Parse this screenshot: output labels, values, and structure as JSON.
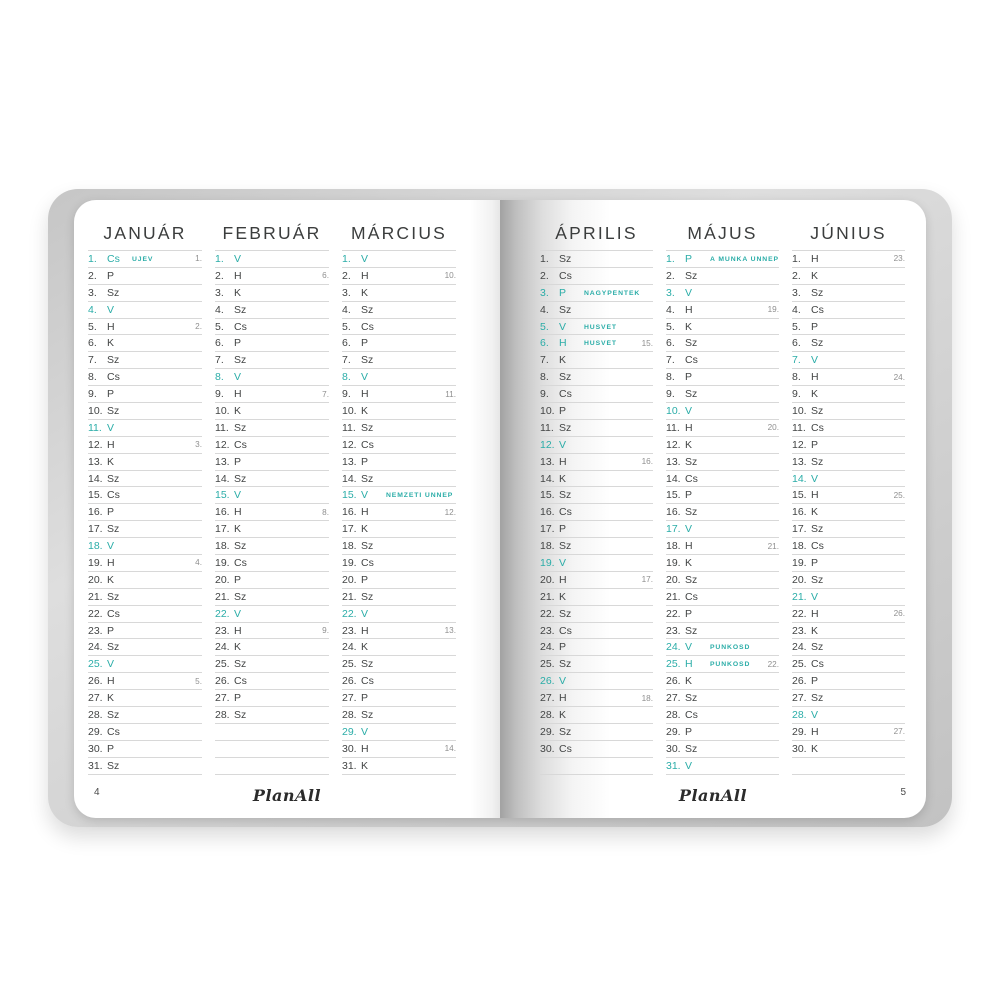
{
  "accent_color": "#2bada8",
  "line_color": "#d8d8d8",
  "left_page": {
    "page_number": "4",
    "logo": "PlanAll"
  },
  "right_page": {
    "page_number": "5",
    "logo": "PlanAll"
  },
  "months": [
    {
      "name": "JANUÁR",
      "rows": [
        {
          "d": "1.",
          "w": "Cs",
          "h": "ÚJÉV",
          "teal": true,
          "wk": "1."
        },
        {
          "d": "2.",
          "w": "P"
        },
        {
          "d": "3.",
          "w": "Sz"
        },
        {
          "d": "4.",
          "w": "V",
          "teal": true
        },
        {
          "d": "5.",
          "w": "H",
          "wk": "2."
        },
        {
          "d": "6.",
          "w": "K"
        },
        {
          "d": "7.",
          "w": "Sz"
        },
        {
          "d": "8.",
          "w": "Cs"
        },
        {
          "d": "9.",
          "w": "P"
        },
        {
          "d": "10.",
          "w": "Sz"
        },
        {
          "d": "11.",
          "w": "V",
          "teal": true
        },
        {
          "d": "12.",
          "w": "H",
          "wk": "3."
        },
        {
          "d": "13.",
          "w": "K"
        },
        {
          "d": "14.",
          "w": "Sz"
        },
        {
          "d": "15.",
          "w": "Cs"
        },
        {
          "d": "16.",
          "w": "P"
        },
        {
          "d": "17.",
          "w": "Sz"
        },
        {
          "d": "18.",
          "w": "V",
          "teal": true
        },
        {
          "d": "19.",
          "w": "H",
          "wk": "4."
        },
        {
          "d": "20.",
          "w": "K"
        },
        {
          "d": "21.",
          "w": "Sz"
        },
        {
          "d": "22.",
          "w": "Cs"
        },
        {
          "d": "23.",
          "w": "P"
        },
        {
          "d": "24.",
          "w": "Sz"
        },
        {
          "d": "25.",
          "w": "V",
          "teal": true
        },
        {
          "d": "26.",
          "w": "H",
          "wk": "5."
        },
        {
          "d": "27.",
          "w": "K"
        },
        {
          "d": "28.",
          "w": "Sz"
        },
        {
          "d": "29.",
          "w": "Cs"
        },
        {
          "d": "30.",
          "w": "P"
        },
        {
          "d": "31.",
          "w": "Sz"
        }
      ]
    },
    {
      "name": "FEBRUÁR",
      "rows": [
        {
          "d": "1.",
          "w": "V",
          "teal": true
        },
        {
          "d": "2.",
          "w": "H",
          "wk": "6."
        },
        {
          "d": "3.",
          "w": "K"
        },
        {
          "d": "4.",
          "w": "Sz"
        },
        {
          "d": "5.",
          "w": "Cs"
        },
        {
          "d": "6.",
          "w": "P"
        },
        {
          "d": "7.",
          "w": "Sz"
        },
        {
          "d": "8.",
          "w": "V",
          "teal": true
        },
        {
          "d": "9.",
          "w": "H",
          "wk": "7."
        },
        {
          "d": "10.",
          "w": "K"
        },
        {
          "d": "11.",
          "w": "Sz"
        },
        {
          "d": "12.",
          "w": "Cs"
        },
        {
          "d": "13.",
          "w": "P"
        },
        {
          "d": "14.",
          "w": "Sz"
        },
        {
          "d": "15.",
          "w": "V",
          "teal": true
        },
        {
          "d": "16.",
          "w": "H",
          "wk": "8."
        },
        {
          "d": "17.",
          "w": "K"
        },
        {
          "d": "18.",
          "w": "Sz"
        },
        {
          "d": "19.",
          "w": "Cs"
        },
        {
          "d": "20.",
          "w": "P"
        },
        {
          "d": "21.",
          "w": "Sz"
        },
        {
          "d": "22.",
          "w": "V",
          "teal": true
        },
        {
          "d": "23.",
          "w": "H",
          "wk": "9."
        },
        {
          "d": "24.",
          "w": "K"
        },
        {
          "d": "25.",
          "w": "Sz"
        },
        {
          "d": "26.",
          "w": "Cs"
        },
        {
          "d": "27.",
          "w": "P"
        },
        {
          "d": "28.",
          "w": "Sz"
        },
        null,
        null,
        null
      ]
    },
    {
      "name": "MÁRCIUS",
      "rows": [
        {
          "d": "1.",
          "w": "V",
          "teal": true
        },
        {
          "d": "2.",
          "w": "H",
          "wk": "10."
        },
        {
          "d": "3.",
          "w": "K"
        },
        {
          "d": "4.",
          "w": "Sz"
        },
        {
          "d": "5.",
          "w": "Cs"
        },
        {
          "d": "6.",
          "w": "P"
        },
        {
          "d": "7.",
          "w": "Sz"
        },
        {
          "d": "8.",
          "w": "V",
          "teal": true
        },
        {
          "d": "9.",
          "w": "H",
          "wk": "11."
        },
        {
          "d": "10.",
          "w": "K"
        },
        {
          "d": "11.",
          "w": "Sz"
        },
        {
          "d": "12.",
          "w": "Cs"
        },
        {
          "d": "13.",
          "w": "P"
        },
        {
          "d": "14.",
          "w": "Sz"
        },
        {
          "d": "15.",
          "w": "V",
          "h": "NEMZETI ÜNNEP",
          "teal": true
        },
        {
          "d": "16.",
          "w": "H",
          "wk": "12."
        },
        {
          "d": "17.",
          "w": "K"
        },
        {
          "d": "18.",
          "w": "Sz"
        },
        {
          "d": "19.",
          "w": "Cs"
        },
        {
          "d": "20.",
          "w": "P"
        },
        {
          "d": "21.",
          "w": "Sz"
        },
        {
          "d": "22.",
          "w": "V",
          "teal": true
        },
        {
          "d": "23.",
          "w": "H",
          "wk": "13."
        },
        {
          "d": "24.",
          "w": "K"
        },
        {
          "d": "25.",
          "w": "Sz"
        },
        {
          "d": "26.",
          "w": "Cs"
        },
        {
          "d": "27.",
          "w": "P"
        },
        {
          "d": "28.",
          "w": "Sz"
        },
        {
          "d": "29.",
          "w": "V",
          "teal": true
        },
        {
          "d": "30.",
          "w": "H",
          "wk": "14."
        },
        {
          "d": "31.",
          "w": "K"
        }
      ]
    },
    {
      "name": "ÁPRILIS",
      "rows": [
        {
          "d": "1.",
          "w": "Sz"
        },
        {
          "d": "2.",
          "w": "Cs"
        },
        {
          "d": "3.",
          "w": "P",
          "h": "NAGYPÉNTEK",
          "teal": true
        },
        {
          "d": "4.",
          "w": "Sz"
        },
        {
          "d": "5.",
          "w": "V",
          "h": "HÚSVÉT",
          "teal": true
        },
        {
          "d": "6.",
          "w": "H",
          "h": "HÚSVÉT",
          "teal": true,
          "wk": "15."
        },
        {
          "d": "7.",
          "w": "K"
        },
        {
          "d": "8.",
          "w": "Sz"
        },
        {
          "d": "9.",
          "w": "Cs"
        },
        {
          "d": "10.",
          "w": "P"
        },
        {
          "d": "11.",
          "w": "Sz"
        },
        {
          "d": "12.",
          "w": "V",
          "teal": true
        },
        {
          "d": "13.",
          "w": "H",
          "wk": "16."
        },
        {
          "d": "14.",
          "w": "K"
        },
        {
          "d": "15.",
          "w": "Sz"
        },
        {
          "d": "16.",
          "w": "Cs"
        },
        {
          "d": "17.",
          "w": "P"
        },
        {
          "d": "18.",
          "w": "Sz"
        },
        {
          "d": "19.",
          "w": "V",
          "teal": true
        },
        {
          "d": "20.",
          "w": "H",
          "wk": "17."
        },
        {
          "d": "21.",
          "w": "K"
        },
        {
          "d": "22.",
          "w": "Sz"
        },
        {
          "d": "23.",
          "w": "Cs"
        },
        {
          "d": "24.",
          "w": "P"
        },
        {
          "d": "25.",
          "w": "Sz"
        },
        {
          "d": "26.",
          "w": "V",
          "teal": true
        },
        {
          "d": "27.",
          "w": "H",
          "wk": "18."
        },
        {
          "d": "28.",
          "w": "K"
        },
        {
          "d": "29.",
          "w": "Sz"
        },
        {
          "d": "30.",
          "w": "Cs"
        },
        null
      ]
    },
    {
      "name": "MÁJUS",
      "rows": [
        {
          "d": "1.",
          "w": "P",
          "h": "A MUNKA ÜNNEPE",
          "teal": true
        },
        {
          "d": "2.",
          "w": "Sz"
        },
        {
          "d": "3.",
          "w": "V",
          "teal": true
        },
        {
          "d": "4.",
          "w": "H",
          "wk": "19."
        },
        {
          "d": "5.",
          "w": "K"
        },
        {
          "d": "6.",
          "w": "Sz"
        },
        {
          "d": "7.",
          "w": "Cs"
        },
        {
          "d": "8.",
          "w": "P"
        },
        {
          "d": "9.",
          "w": "Sz"
        },
        {
          "d": "10.",
          "w": "V",
          "teal": true
        },
        {
          "d": "11.",
          "w": "H",
          "wk": "20."
        },
        {
          "d": "12.",
          "w": "K"
        },
        {
          "d": "13.",
          "w": "Sz"
        },
        {
          "d": "14.",
          "w": "Cs"
        },
        {
          "d": "15.",
          "w": "P"
        },
        {
          "d": "16.",
          "w": "Sz"
        },
        {
          "d": "17.",
          "w": "V",
          "teal": true
        },
        {
          "d": "18.",
          "w": "H",
          "wk": "21."
        },
        {
          "d": "19.",
          "w": "K"
        },
        {
          "d": "20.",
          "w": "Sz"
        },
        {
          "d": "21.",
          "w": "Cs"
        },
        {
          "d": "22.",
          "w": "P"
        },
        {
          "d": "23.",
          "w": "Sz"
        },
        {
          "d": "24.",
          "w": "V",
          "h": "PÜNKÖSD",
          "teal": true
        },
        {
          "d": "25.",
          "w": "H",
          "h": "PÜNKÖSD",
          "teal": true,
          "wk": "22."
        },
        {
          "d": "26.",
          "w": "K"
        },
        {
          "d": "27.",
          "w": "Sz"
        },
        {
          "d": "28.",
          "w": "Cs"
        },
        {
          "d": "29.",
          "w": "P"
        },
        {
          "d": "30.",
          "w": "Sz"
        },
        {
          "d": "31.",
          "w": "V",
          "teal": true
        }
      ]
    },
    {
      "name": "JÚNIUS",
      "rows": [
        {
          "d": "1.",
          "w": "H",
          "wk": "23."
        },
        {
          "d": "2.",
          "w": "K"
        },
        {
          "d": "3.",
          "w": "Sz"
        },
        {
          "d": "4.",
          "w": "Cs"
        },
        {
          "d": "5.",
          "w": "P"
        },
        {
          "d": "6.",
          "w": "Sz"
        },
        {
          "d": "7.",
          "w": "V",
          "teal": true
        },
        {
          "d": "8.",
          "w": "H",
          "wk": "24."
        },
        {
          "d": "9.",
          "w": "K"
        },
        {
          "d": "10.",
          "w": "Sz"
        },
        {
          "d": "11.",
          "w": "Cs"
        },
        {
          "d": "12.",
          "w": "P"
        },
        {
          "d": "13.",
          "w": "Sz"
        },
        {
          "d": "14.",
          "w": "V",
          "teal": true
        },
        {
          "d": "15.",
          "w": "H",
          "wk": "25."
        },
        {
          "d": "16.",
          "w": "K"
        },
        {
          "d": "17.",
          "w": "Sz"
        },
        {
          "d": "18.",
          "w": "Cs"
        },
        {
          "d": "19.",
          "w": "P"
        },
        {
          "d": "20.",
          "w": "Sz"
        },
        {
          "d": "21.",
          "w": "V",
          "teal": true
        },
        {
          "d": "22.",
          "w": "H",
          "wk": "26."
        },
        {
          "d": "23.",
          "w": "K"
        },
        {
          "d": "24.",
          "w": "Sz"
        },
        {
          "d": "25.",
          "w": "Cs"
        },
        {
          "d": "26.",
          "w": "P"
        },
        {
          "d": "27.",
          "w": "Sz"
        },
        {
          "d": "28.",
          "w": "V",
          "teal": true
        },
        {
          "d": "29.",
          "w": "H",
          "wk": "27."
        },
        {
          "d": "30.",
          "w": "K"
        },
        null
      ]
    }
  ]
}
